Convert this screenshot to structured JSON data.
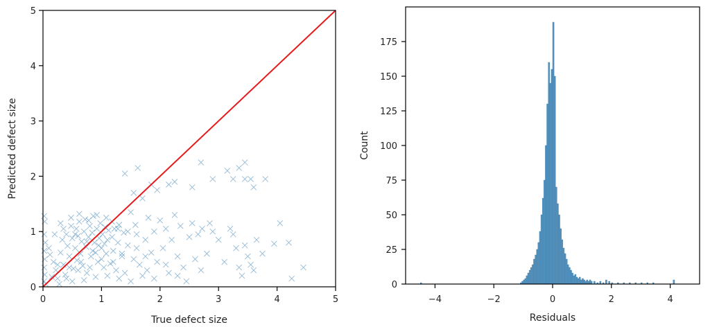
{
  "colors": {
    "scatter": "#3b7fb5",
    "identity_line": "#e41a1c",
    "bar": "#3a7fb0",
    "axis": "#000000"
  },
  "chart_data": [
    {
      "type": "scatter",
      "title": "",
      "xlabel": "True defect size",
      "ylabel": "Predicted defect size",
      "xlim": [
        0,
        5
      ],
      "ylim": [
        0,
        5
      ],
      "xticks": [
        0,
        1,
        2,
        3,
        4,
        5
      ],
      "yticks": [
        0,
        1,
        2,
        3,
        4,
        5
      ],
      "marker": "x",
      "identity_line": {
        "from": [
          0,
          0
        ],
        "to": [
          5,
          5
        ]
      },
      "points": [
        [
          0.02,
          1.28
        ],
        [
          0.03,
          1.18
        ],
        [
          0.02,
          0.95
        ],
        [
          0.04,
          0.8
        ],
        [
          0.02,
          0.65
        ],
        [
          0.03,
          0.5
        ],
        [
          0.02,
          0.35
        ],
        [
          0.03,
          0.22
        ],
        [
          0.02,
          0.1
        ],
        [
          0.05,
          0.05
        ],
        [
          0.1,
          0.7
        ],
        [
          0.12,
          0.58
        ],
        [
          0.18,
          0.45
        ],
        [
          0.22,
          0.3
        ],
        [
          0.25,
          0.15
        ],
        [
          0.28,
          0.05
        ],
        [
          0.3,
          0.62
        ],
        [
          0.33,
          0.85
        ],
        [
          0.35,
          0.4
        ],
        [
          0.38,
          0.22
        ],
        [
          0.4,
          0.95
        ],
        [
          0.42,
          0.74
        ],
        [
          0.45,
          0.55
        ],
        [
          0.48,
          1.1
        ],
        [
          0.5,
          0.88
        ],
        [
          0.52,
          0.33
        ],
        [
          0.55,
          0.7
        ],
        [
          0.57,
          1.05
        ],
        [
          0.58,
          0.48
        ],
        [
          0.6,
          0.92
        ],
        [
          0.62,
          1.18
        ],
        [
          0.64,
          0.6
        ],
        [
          0.66,
          0.82
        ],
        [
          0.68,
          0.38
        ],
        [
          0.7,
          1.0
        ],
        [
          0.72,
          1.22
        ],
        [
          0.74,
          0.72
        ],
        [
          0.75,
          0.25
        ],
        [
          0.78,
          0.9
        ],
        [
          0.8,
          1.1
        ],
        [
          0.82,
          0.55
        ],
        [
          0.84,
          0.98
        ],
        [
          0.86,
          1.28
        ],
        [
          0.88,
          0.8
        ],
        [
          0.9,
          0.62
        ],
        [
          0.92,
          1.05
        ],
        [
          0.94,
          0.45
        ],
        [
          0.96,
          0.88
        ],
        [
          0.98,
          1.15
        ],
        [
          1.0,
          0.7
        ],
        [
          1.02,
          0.95
        ],
        [
          1.04,
          0.35
        ],
        [
          1.06,
          1.08
        ],
        [
          1.08,
          0.6
        ],
        [
          1.1,
          0.85
        ],
        [
          1.12,
          1.02
        ],
        [
          1.15,
          0.42
        ],
        [
          1.18,
          0.9
        ],
        [
          1.2,
          0.65
        ],
        [
          1.22,
          1.05
        ],
        [
          1.25,
          0.3
        ],
        [
          1.28,
          0.8
        ],
        [
          1.3,
          1.12
        ],
        [
          1.35,
          0.55
        ],
        [
          1.38,
          0.98
        ],
        [
          1.4,
          0.25
        ],
        [
          1.45,
          0.75
        ],
        [
          1.5,
          1.35
        ],
        [
          1.55,
          0.5
        ],
        [
          1.6,
          0.95
        ],
        [
          1.62,
          2.15
        ],
        [
          1.65,
          0.4
        ],
        [
          1.7,
          1.6
        ],
        [
          1.75,
          0.85
        ],
        [
          1.78,
          0.3
        ],
        [
          1.8,
          1.25
        ],
        [
          1.85,
          0.62
        ],
        [
          1.9,
          1.0
        ],
        [
          1.95,
          0.45
        ],
        [
          2.0,
          1.2
        ],
        [
          2.05,
          0.7
        ],
        [
          2.1,
          1.05
        ],
        [
          2.15,
          0.25
        ],
        [
          2.2,
          0.85
        ],
        [
          2.25,
          1.3
        ],
        [
          2.3,
          0.55
        ],
        [
          2.35,
          1.1
        ],
        [
          2.4,
          0.35
        ],
        [
          2.5,
          0.9
        ],
        [
          2.55,
          1.15
        ],
        [
          2.6,
          0.5
        ],
        [
          2.65,
          0.95
        ],
        [
          2.7,
          0.3
        ],
        [
          2.72,
          1.05
        ],
        [
          2.8,
          0.6
        ],
        [
          2.85,
          1.15
        ],
        [
          2.9,
          1.0
        ],
        [
          3.0,
          0.85
        ],
        [
          3.1,
          0.45
        ],
        [
          3.2,
          1.05
        ],
        [
          3.25,
          0.95
        ],
        [
          3.3,
          0.7
        ],
        [
          3.35,
          0.35
        ],
        [
          3.4,
          0.2
        ],
        [
          3.45,
          0.75
        ],
        [
          3.5,
          0.55
        ],
        [
          3.55,
          0.4
        ],
        [
          3.6,
          0.3
        ],
        [
          3.65,
          0.85
        ],
        [
          3.75,
          0.6
        ],
        [
          3.95,
          0.78
        ],
        [
          4.05,
          1.15
        ],
        [
          4.2,
          0.8
        ],
        [
          4.25,
          0.15
        ],
        [
          4.45,
          0.35
        ],
        [
          1.4,
          2.05
        ],
        [
          1.55,
          1.7
        ],
        [
          1.85,
          1.85
        ],
        [
          1.95,
          1.75
        ],
        [
          2.15,
          1.85
        ],
        [
          2.25,
          1.9
        ],
        [
          2.55,
          1.8
        ],
        [
          2.7,
          2.25
        ],
        [
          2.9,
          1.95
        ],
        [
          3.15,
          2.1
        ],
        [
          3.25,
          1.95
        ],
        [
          3.35,
          2.15
        ],
        [
          3.45,
          2.25
        ],
        [
          3.55,
          1.95
        ],
        [
          3.6,
          1.8
        ],
        [
          3.8,
          1.95
        ],
        [
          3.45,
          1.95
        ],
        [
          0.2,
          0.95
        ],
        [
          0.35,
          1.05
        ],
        [
          0.55,
          0.95
        ],
        [
          0.75,
          0.82
        ],
        [
          0.85,
          0.65
        ],
        [
          0.95,
          0.75
        ],
        [
          1.05,
          0.78
        ],
        [
          0.6,
          0.3
        ],
        [
          0.4,
          0.15
        ],
        [
          0.5,
          0.1
        ],
        [
          0.7,
          0.12
        ],
        [
          0.9,
          0.18
        ],
        [
          1.1,
          0.2
        ],
        [
          1.3,
          0.15
        ],
        [
          1.5,
          0.1
        ],
        [
          1.7,
          0.2
        ],
        [
          1.9,
          0.15
        ],
        [
          2.1,
          0.4
        ],
        [
          2.3,
          0.2
        ],
        [
          2.45,
          0.1
        ],
        [
          0.15,
          0.18
        ],
        [
          0.25,
          0.4
        ],
        [
          0.45,
          0.35
        ],
        [
          0.65,
          0.45
        ],
        [
          0.8,
          0.35
        ],
        [
          1.0,
          0.5
        ],
        [
          1.2,
          0.45
        ],
        [
          1.35,
          0.6
        ],
        [
          1.6,
          0.7
        ],
        [
          1.75,
          0.55
        ],
        [
          0.3,
          1.15
        ],
        [
          0.48,
          1.25
        ],
        [
          0.62,
          1.32
        ],
        [
          0.78,
          1.2
        ],
        [
          0.92,
          1.3
        ],
        [
          1.08,
          1.25
        ],
        [
          1.18,
          1.18
        ],
        [
          1.28,
          1.05
        ],
        [
          1.45,
          1.0
        ],
        [
          1.58,
          1.12
        ]
      ]
    },
    {
      "type": "histogram",
      "title": "",
      "xlabel": "Residuals",
      "ylabel": "Count",
      "xlim": [
        -5,
        5
      ],
      "ylim": [
        0,
        200
      ],
      "xticks": [
        -4,
        -2,
        0,
        2,
        4
      ],
      "xtick_labels": [
        "−4",
        "−2",
        "0",
        "2",
        "4"
      ],
      "yticks": [
        0,
        25,
        50,
        75,
        100,
        125,
        150,
        175
      ],
      "bins": [
        [
          -4.5,
          1
        ],
        [
          -1.1,
          1
        ],
        [
          -1.05,
          2
        ],
        [
          -1.0,
          3
        ],
        [
          -0.95,
          4
        ],
        [
          -0.9,
          6
        ],
        [
          -0.85,
          8
        ],
        [
          -0.8,
          10
        ],
        [
          -0.75,
          12
        ],
        [
          -0.7,
          14
        ],
        [
          -0.65,
          18
        ],
        [
          -0.6,
          21
        ],
        [
          -0.55,
          25
        ],
        [
          -0.5,
          30
        ],
        [
          -0.45,
          38
        ],
        [
          -0.4,
          50
        ],
        [
          -0.35,
          62
        ],
        [
          -0.3,
          75
        ],
        [
          -0.25,
          100
        ],
        [
          -0.2,
          130
        ],
        [
          -0.15,
          160
        ],
        [
          -0.1,
          145
        ],
        [
          -0.05,
          155
        ],
        [
          0.0,
          189
        ],
        [
          0.05,
          150
        ],
        [
          0.1,
          70
        ],
        [
          0.15,
          58
        ],
        [
          0.2,
          50
        ],
        [
          0.25,
          40
        ],
        [
          0.3,
          32
        ],
        [
          0.35,
          26
        ],
        [
          0.4,
          22
        ],
        [
          0.45,
          18
        ],
        [
          0.5,
          14
        ],
        [
          0.55,
          12
        ],
        [
          0.6,
          10
        ],
        [
          0.65,
          8
        ],
        [
          0.7,
          6
        ],
        [
          0.75,
          7
        ],
        [
          0.8,
          5
        ],
        [
          0.85,
          4
        ],
        [
          0.9,
          5
        ],
        [
          0.95,
          3
        ],
        [
          1.0,
          4
        ],
        [
          1.05,
          3
        ],
        [
          1.1,
          2
        ],
        [
          1.15,
          3
        ],
        [
          1.2,
          2
        ],
        [
          1.25,
          3
        ],
        [
          1.3,
          2
        ],
        [
          1.4,
          2
        ],
        [
          1.5,
          1
        ],
        [
          1.6,
          2
        ],
        [
          1.7,
          1
        ],
        [
          1.8,
          3
        ],
        [
          1.9,
          2
        ],
        [
          2.0,
          1
        ],
        [
          2.2,
          1
        ],
        [
          2.4,
          1
        ],
        [
          2.6,
          1
        ],
        [
          2.8,
          1
        ],
        [
          3.0,
          1
        ],
        [
          3.2,
          1
        ],
        [
          3.4,
          1
        ],
        [
          4.1,
          3
        ]
      ],
      "bin_width": 0.05
    }
  ]
}
